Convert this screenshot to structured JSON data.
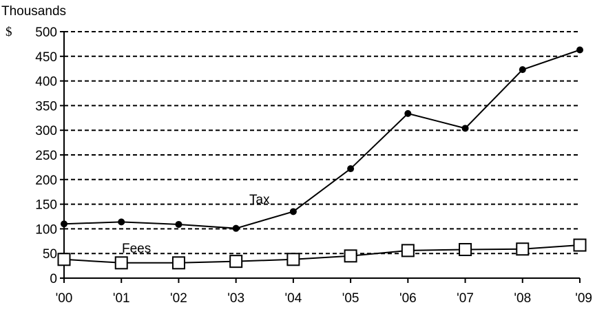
{
  "chart_data": {
    "type": "line",
    "y_unit_label": "Thousands",
    "y_currency_symbol": "$",
    "categories": [
      "'00",
      "'01",
      "'02",
      "'03",
      "'04",
      "'05",
      "'06",
      "'07",
      "'08",
      "'09"
    ],
    "ylim": [
      0,
      500
    ],
    "y_ticks": [
      0,
      50,
      100,
      150,
      200,
      250,
      300,
      350,
      400,
      450,
      500
    ],
    "grid": true,
    "legend": "inline-labels",
    "series": [
      {
        "name": "Tax",
        "marker": "filled-circle",
        "color": "#000000",
        "values": [
          110,
          114,
          109,
          101,
          135,
          222,
          334,
          304,
          423,
          463
        ]
      },
      {
        "name": "Fees",
        "marker": "open-square",
        "color": "#000000",
        "values": [
          38,
          31,
          31,
          34,
          38,
          45,
          56,
          58,
          59,
          67
        ]
      }
    ]
  }
}
